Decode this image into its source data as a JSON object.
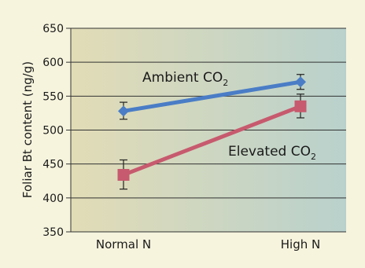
{
  "chart_data": {
    "type": "line",
    "categories": [
      "Normal N",
      "High N"
    ],
    "ylabel": "Foliar Bt content (ng/g)",
    "ylim": [
      350,
      650
    ],
    "yticks": [
      350,
      400,
      450,
      500,
      550,
      600,
      650
    ],
    "grid": true,
    "series": [
      {
        "name": "Ambient CO",
        "name_subscript": "2",
        "color": "#4a7dc6",
        "marker": "diamond",
        "values": [
          528,
          571
        ],
        "error_low": [
          516,
          560
        ],
        "error_high": [
          541,
          582
        ]
      },
      {
        "name": "Elevated CO",
        "name_subscript": "2",
        "color": "#c75a6e",
        "marker": "square",
        "values": [
          434,
          535
        ],
        "error_low": [
          413,
          518
        ],
        "error_high": [
          456,
          553
        ]
      }
    ]
  }
}
